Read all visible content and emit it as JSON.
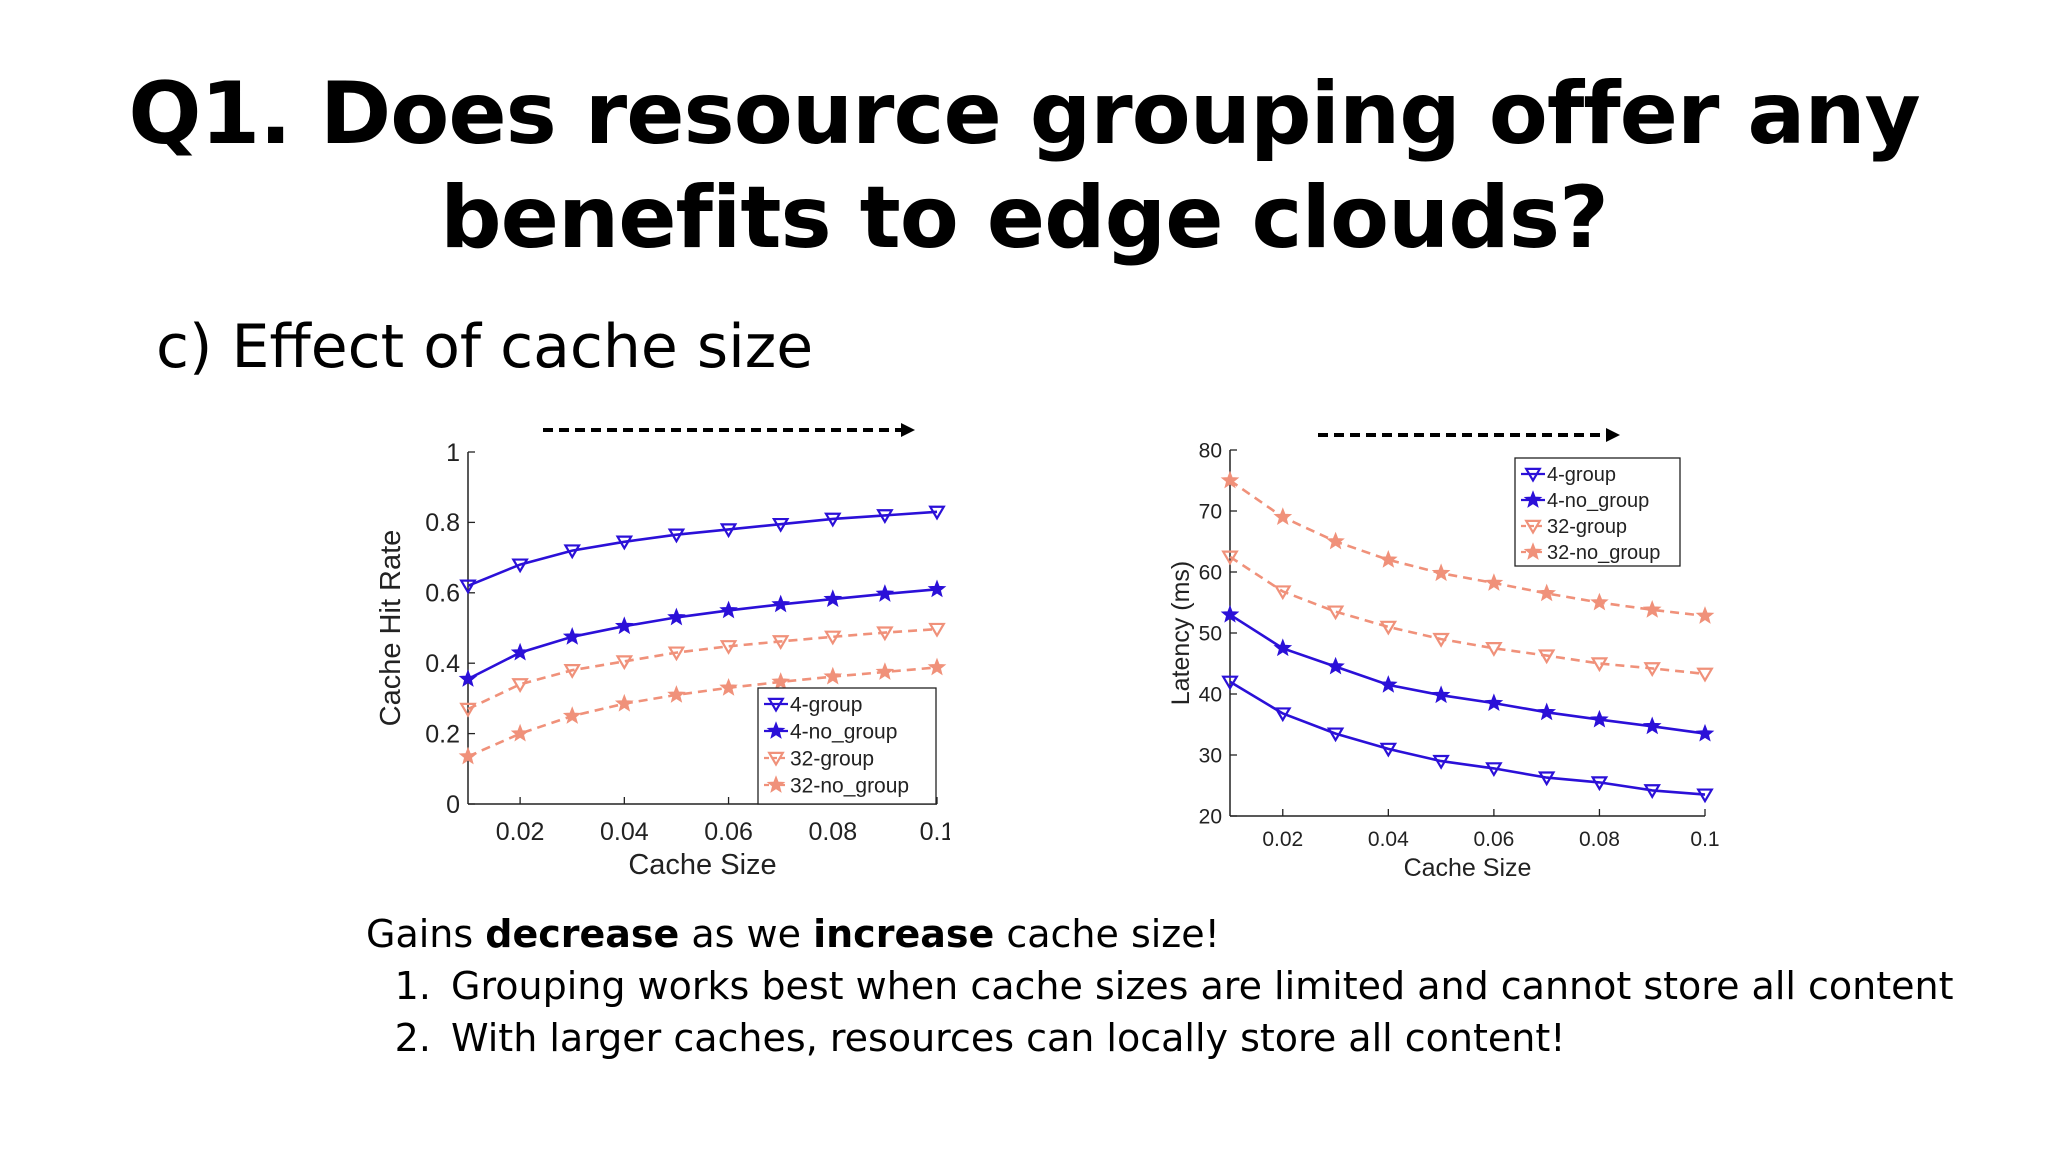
{
  "slide": {
    "title_line1": "Q1. Does resource grouping offer any",
    "title_line2": "benefits to edge clouds?",
    "subtitle": "c) Effect of cache size",
    "note_parts": [
      "Gains ",
      "decrease",
      " as we ",
      "increase",
      " cache size!"
    ],
    "points": [
      "Grouping works best when cache sizes are limited and cannot store all content",
      "With larger caches, resources can locally store all content!"
    ]
  },
  "colors": {
    "blue": "#2b10d8",
    "salmon": "#f0917a",
    "arrow": "#000000"
  },
  "chart_data": [
    {
      "type": "line",
      "xlabel": "Cache Size",
      "ylabel": "Cache Hit Rate",
      "xlim": [
        0.01,
        0.1
      ],
      "ylim": [
        0,
        1
      ],
      "xticks": [
        0.02,
        0.04,
        0.06,
        0.08,
        0.1
      ],
      "xtick_labels": [
        "0.02",
        "0.04",
        "0.06",
        "0.08",
        "0.1"
      ],
      "yticks": [
        0,
        0.2,
        0.4,
        0.6,
        0.8,
        1
      ],
      "ytick_labels": [
        "0",
        "0.2",
        "0.4",
        "0.6",
        "0.8",
        "1"
      ],
      "legend_position": "bottom-right",
      "annotation": "dashed arrow pointing right along the top",
      "x": [
        0.01,
        0.02,
        0.03,
        0.04,
        0.05,
        0.06,
        0.07,
        0.08,
        0.09,
        0.1
      ],
      "series": [
        {
          "name": "4-group",
          "color": "blue",
          "marker": "triangle-down",
          "dashed": false,
          "values": [
            0.62,
            0.68,
            0.72,
            0.745,
            0.765,
            0.78,
            0.795,
            0.81,
            0.82,
            0.83
          ]
        },
        {
          "name": "4-no_group",
          "color": "blue",
          "marker": "star",
          "dashed": false,
          "values": [
            0.355,
            0.43,
            0.475,
            0.505,
            0.53,
            0.55,
            0.567,
            0.582,
            0.597,
            0.61
          ]
        },
        {
          "name": "32-group",
          "color": "salmon",
          "marker": "triangle-down",
          "dashed": true,
          "values": [
            0.27,
            0.34,
            0.38,
            0.405,
            0.43,
            0.448,
            0.462,
            0.475,
            0.487,
            0.497
          ]
        },
        {
          "name": "32-no_group",
          "color": "salmon",
          "marker": "star",
          "dashed": true,
          "values": [
            0.135,
            0.2,
            0.25,
            0.285,
            0.31,
            0.33,
            0.347,
            0.362,
            0.375,
            0.388
          ]
        }
      ]
    },
    {
      "type": "line",
      "xlabel": "Cache Size",
      "ylabel": "Latency (ms)",
      "xlim": [
        0.01,
        0.1
      ],
      "ylim": [
        20,
        80
      ],
      "xticks": [
        0.02,
        0.04,
        0.06,
        0.08,
        0.1
      ],
      "xtick_labels": [
        "0.02",
        "0.04",
        "0.06",
        "0.08",
        "0.1"
      ],
      "yticks": [
        20,
        30,
        40,
        50,
        60,
        70,
        80
      ],
      "ytick_labels": [
        "20",
        "30",
        "40",
        "50",
        "60",
        "70",
        "80"
      ],
      "legend_position": "top-right",
      "annotation": "dashed arrow pointing right along the top",
      "x": [
        0.01,
        0.02,
        0.03,
        0.04,
        0.05,
        0.06,
        0.07,
        0.08,
        0.09,
        0.1
      ],
      "series": [
        {
          "name": "4-group",
          "color": "blue",
          "marker": "triangle-down",
          "dashed": false,
          "values": [
            42,
            36.8,
            33.5,
            31,
            29,
            27.8,
            26.3,
            25.5,
            24.2,
            23.5
          ]
        },
        {
          "name": "4-no_group",
          "color": "blue",
          "marker": "star",
          "dashed": false,
          "values": [
            53,
            47.5,
            44.5,
            41.5,
            39.8,
            38.5,
            37,
            35.8,
            34.7,
            33.5
          ]
        },
        {
          "name": "32-group",
          "color": "salmon",
          "marker": "triangle-down",
          "dashed": true,
          "values": [
            62.5,
            56.8,
            53.5,
            51,
            49,
            47.5,
            46.3,
            45,
            44.2,
            43.3
          ]
        },
        {
          "name": "32-no_group",
          "color": "salmon",
          "marker": "star",
          "dashed": true,
          "values": [
            75,
            69,
            65,
            62,
            59.8,
            58.2,
            56.5,
            55,
            53.8,
            52.8
          ]
        }
      ]
    }
  ]
}
